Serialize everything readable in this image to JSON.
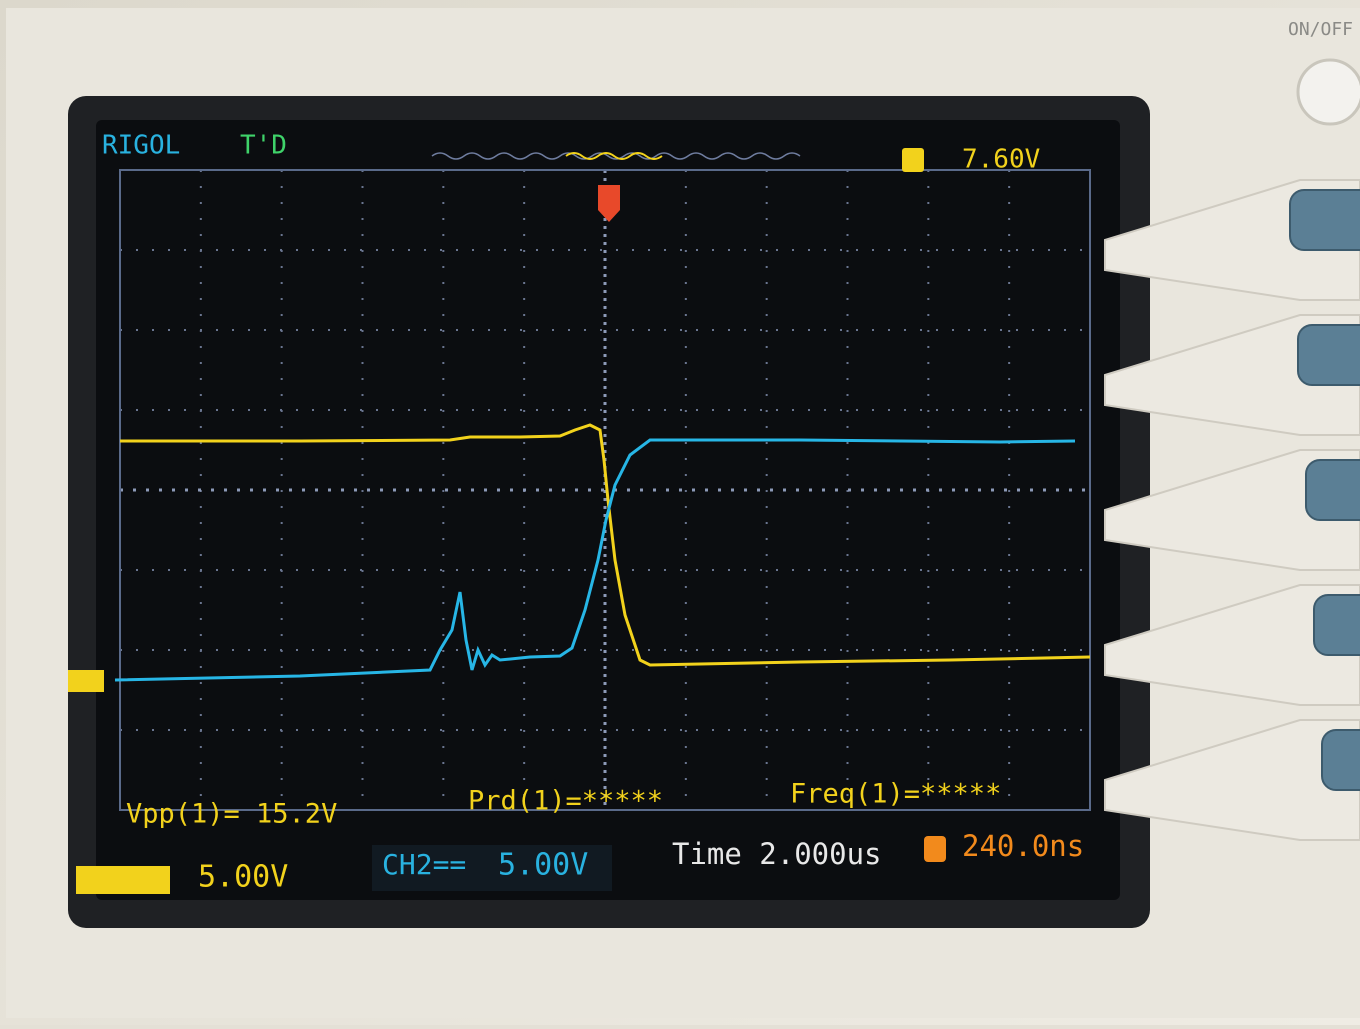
{
  "header": {
    "brand": "RIGOL",
    "status": "T'D",
    "trigger_level": "7.60V"
  },
  "measurements": {
    "vpp": "Vpp(1)= 15.2V",
    "period": "Prd(1)=*****",
    "frequency": "Freq(1)=*****"
  },
  "footer": {
    "ch1_scale": "5.00V",
    "ch2_label": "CH2==",
    "ch2_scale": "5.00V",
    "timebase": "Time 2.000us",
    "trigger_offset": "240.0ns"
  },
  "device": {
    "power_label": "ON/OFF"
  }
}
